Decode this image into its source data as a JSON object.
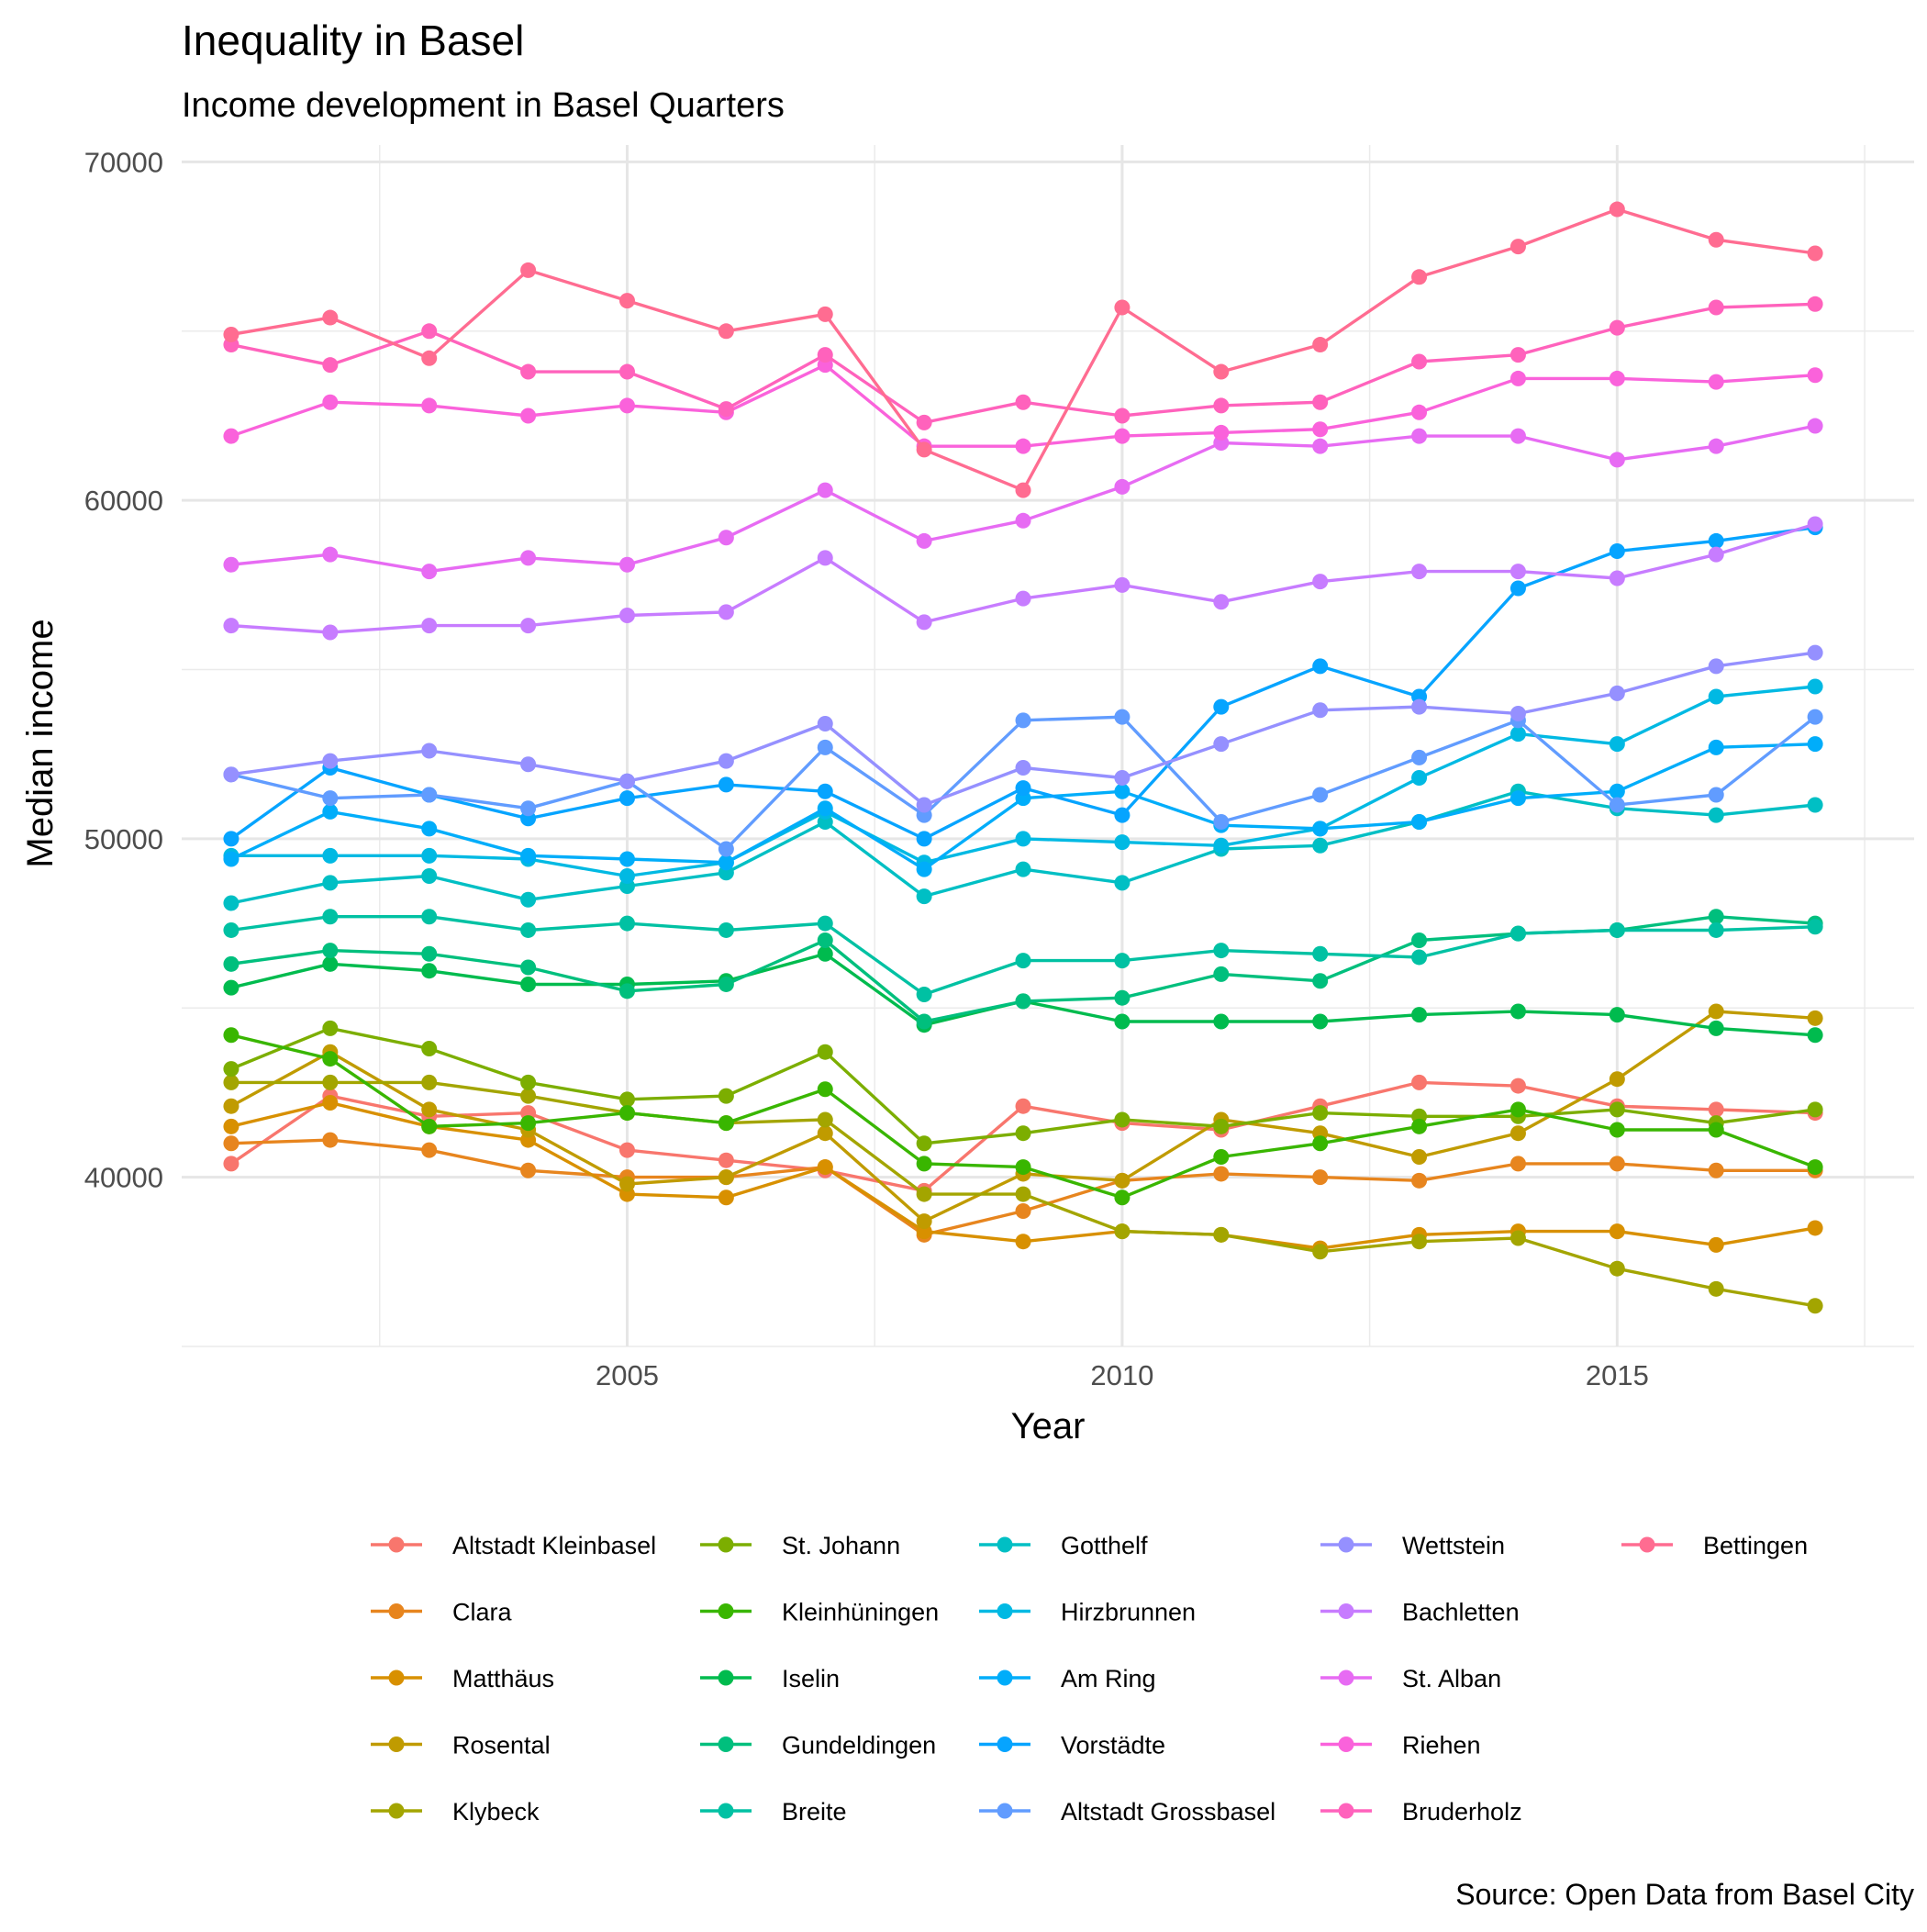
{
  "chart_data": {
    "type": "line",
    "title": "Inequality in Basel",
    "subtitle": "Income development in Basel Quarters",
    "caption": "Source: Open Data from Basel City",
    "xlabel": "Year",
    "ylabel": "Median income",
    "xlim": [
      2000.5,
      2018
    ],
    "ylim": [
      35000,
      70500
    ],
    "xticks": [
      2005,
      2010,
      2015
    ],
    "yticks": [
      40000,
      50000,
      60000,
      70000
    ],
    "grid": true,
    "legend_position": "bottom",
    "x": [
      2001,
      2002,
      2003,
      2004,
      2005,
      2006,
      2007,
      2008,
      2009,
      2010,
      2011,
      2012,
      2013,
      2014,
      2015,
      2016,
      2017
    ],
    "series": [
      {
        "name": "Altstadt Kleinbasel",
        "color": "#F8766D",
        "values": [
          40400,
          42400,
          41800,
          41900,
          40800,
          40500,
          40200,
          39600,
          42100,
          41600,
          41400,
          42100,
          42800,
          42700,
          42100,
          42000,
          41900
        ]
      },
      {
        "name": "Clara",
        "color": "#E7851E",
        "values": [
          41000,
          41100,
          40800,
          40200,
          40000,
          40000,
          40300,
          38300,
          39000,
          39900,
          40100,
          40000,
          39900,
          40400,
          40400,
          40200,
          40200
        ]
      },
      {
        "name": "Matthäus",
        "color": "#D89000",
        "values": [
          41500,
          42200,
          41500,
          41100,
          39500,
          39400,
          40300,
          38400,
          38100,
          38400,
          38300,
          37900,
          38300,
          38400,
          38400,
          38000,
          38500
        ]
      },
      {
        "name": "Rosental",
        "color": "#C09B00",
        "values": [
          42100,
          43700,
          42000,
          41400,
          39800,
          40000,
          41300,
          38700,
          40100,
          39900,
          41700,
          41300,
          40600,
          41300,
          42900,
          44900,
          44700
        ]
      },
      {
        "name": "Klybeck",
        "color": "#A3A500",
        "values": [
          42800,
          42800,
          42800,
          42400,
          41900,
          41600,
          41700,
          39500,
          39500,
          38400,
          38300,
          37800,
          38100,
          38200,
          37300,
          36700,
          36200
        ]
      },
      {
        "name": "St. Johann",
        "color": "#7CAE00",
        "values": [
          43200,
          44400,
          43800,
          42800,
          42300,
          42400,
          43700,
          41000,
          41300,
          41700,
          41500,
          41900,
          41800,
          41800,
          42000,
          41600,
          42000
        ]
      },
      {
        "name": "Kleinhüningen",
        "color": "#39B600",
        "values": [
          44200,
          43500,
          41500,
          41600,
          41900,
          41600,
          42600,
          40400,
          40300,
          39400,
          40600,
          41000,
          41500,
          42000,
          41400,
          41400,
          40300
        ]
      },
      {
        "name": "Iselin",
        "color": "#00BB4E",
        "values": [
          45600,
          46300,
          46100,
          45700,
          45700,
          45800,
          46600,
          44500,
          45200,
          44600,
          44600,
          44600,
          44800,
          44900,
          44800,
          44400,
          44200
        ]
      },
      {
        "name": "Gundeldingen",
        "color": "#00BF7D",
        "values": [
          46300,
          46700,
          46600,
          46200,
          45500,
          45700,
          47000,
          44600,
          45200,
          45300,
          46000,
          45800,
          47000,
          47200,
          47300,
          47700,
          47500
        ]
      },
      {
        "name": "Breite",
        "color": "#00C1A3",
        "values": [
          47300,
          47700,
          47700,
          47300,
          47500,
          47300,
          47500,
          45400,
          46400,
          46400,
          46700,
          46600,
          46500,
          47200,
          47300,
          47300,
          47400
        ]
      },
      {
        "name": "Gotthelf",
        "color": "#00BFC4",
        "values": [
          48100,
          48700,
          48900,
          48200,
          48600,
          49000,
          50500,
          48300,
          49100,
          48700,
          49700,
          49800,
          50500,
          51400,
          50900,
          50700,
          51000
        ]
      },
      {
        "name": "Hirzbrunnen",
        "color": "#00B9E3",
        "values": [
          49500,
          49500,
          49500,
          49400,
          48900,
          49300,
          50800,
          49300,
          50000,
          49900,
          49800,
          50300,
          51800,
          53100,
          52800,
          54200,
          54500
        ]
      },
      {
        "name": "Am Ring",
        "color": "#00ADFA",
        "values": [
          49400,
          50800,
          50300,
          49500,
          49400,
          49300,
          50900,
          49100,
          51200,
          51400,
          50400,
          50300,
          50500,
          51200,
          51400,
          52700,
          52800
        ]
      },
      {
        "name": "Vorstädte",
        "color": "#06A4FF",
        "values": [
          50000,
          52100,
          51300,
          50600,
          51200,
          51600,
          51400,
          50000,
          51500,
          50700,
          53900,
          55100,
          54200,
          57400,
          58500,
          58800,
          59200
        ]
      },
      {
        "name": "Altstadt Grossbasel",
        "color": "#619CFF",
        "values": [
          51900,
          51200,
          51300,
          50900,
          51700,
          49700,
          52700,
          50700,
          53500,
          53600,
          50500,
          51300,
          52400,
          53500,
          51000,
          51300,
          53600
        ]
      },
      {
        "name": "Wettstein",
        "color": "#9590FF",
        "values": [
          51900,
          52300,
          52600,
          52200,
          51700,
          52300,
          53400,
          51000,
          52100,
          51800,
          52800,
          53800,
          53900,
          53700,
          54300,
          55100,
          55500
        ]
      },
      {
        "name": "Bachletten",
        "color": "#C77CFF",
        "values": [
          56300,
          56100,
          56300,
          56300,
          56600,
          56700,
          58300,
          56400,
          57100,
          57500,
          57000,
          57600,
          57900,
          57900,
          57700,
          58400,
          59300
        ]
      },
      {
        "name": "St. Alban",
        "color": "#E76BF3",
        "values": [
          58100,
          58400,
          57900,
          58300,
          58100,
          58900,
          60300,
          58800,
          59400,
          60400,
          61700,
          61600,
          61900,
          61900,
          61200,
          61600,
          62200
        ]
      },
      {
        "name": "Riehen",
        "color": "#FA62DB",
        "values": [
          61900,
          62900,
          62800,
          62500,
          62800,
          62600,
          64000,
          61600,
          61600,
          61900,
          62000,
          62100,
          62600,
          63600,
          63600,
          63500,
          63700
        ]
      },
      {
        "name": "Bruderholz",
        "color": "#FF62BC",
        "values": [
          64600,
          64000,
          65000,
          63800,
          63800,
          62700,
          64300,
          62300,
          62900,
          62500,
          62800,
          62900,
          64100,
          64300,
          65100,
          65700,
          65800
        ]
      },
      {
        "name": "Bettingen",
        "color": "#FF6C91",
        "values": [
          64900,
          65400,
          64200,
          66800,
          65900,
          65000,
          65500,
          61500,
          60300,
          65700,
          63800,
          64600,
          66600,
          67500,
          68600,
          67700,
          67300
        ]
      }
    ]
  }
}
